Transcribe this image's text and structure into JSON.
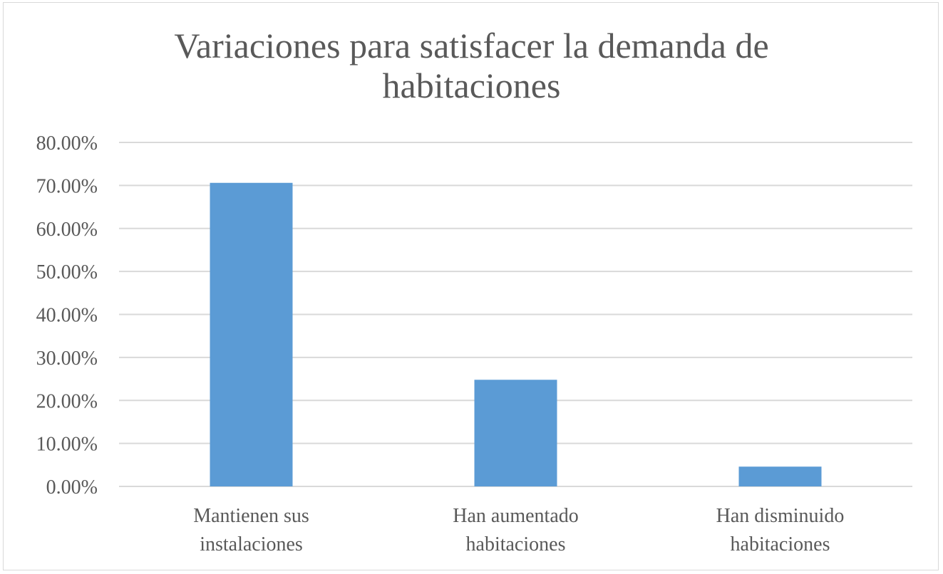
{
  "chart_data": {
    "type": "bar",
    "title_lines": [
      "Variaciones para satisfacer la demanda de",
      "habitaciones"
    ],
    "categories": [
      [
        "Mantienen sus",
        "instalaciones"
      ],
      [
        "Han aumentado",
        "habitaciones"
      ],
      [
        "Han disminuido",
        "habitaciones"
      ]
    ],
    "values": [
      70.6,
      24.8,
      4.6
    ],
    "ylim": [
      0,
      80
    ],
    "yticks": [
      "0.00%",
      "10.00%",
      "20.00%",
      "30.00%",
      "40.00%",
      "50.00%",
      "60.00%",
      "70.00%",
      "80.00%"
    ],
    "xlabel": "",
    "ylabel": "",
    "grid": true,
    "legend": "none",
    "bar_color": "#5b9bd5",
    "grid_color": "#d9d9d9",
    "text_color": "#595959"
  }
}
